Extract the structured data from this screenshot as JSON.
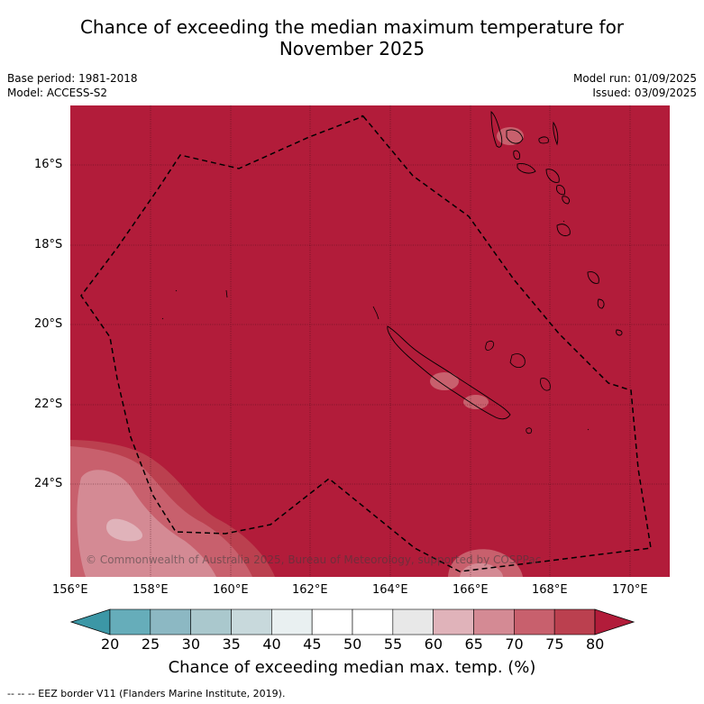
{
  "header": {
    "title_line1": "Chance of exceeding the median maximum temperature for",
    "title_line2": "November 2025",
    "base_period": "Base period: 1981-2018",
    "model": "Model: ACCESS-S2",
    "model_run": "Model run: 01/09/2025",
    "issued": "Issued: 03/09/2025"
  },
  "map": {
    "lat_labels": [
      "16°S",
      "18°S",
      "20°S",
      "22°S",
      "24°S"
    ],
    "lon_labels": [
      "156°E",
      "158°E",
      "160°E",
      "162°E",
      "164°E",
      "166°E",
      "168°E",
      "170°E"
    ],
    "watermark": "© Commonwealth of Australia 2025, Bureau of Meteorology, supported by COSPPac",
    "dominant_color": "#b21c3a",
    "eez_line_style": "dashed black"
  },
  "colorbar": {
    "ticks": [
      "20",
      "25",
      "30",
      "35",
      "40",
      "45",
      "50",
      "55",
      "60",
      "65",
      "70",
      "75",
      "80"
    ],
    "colors": [
      "#3c97a6",
      "#66adba",
      "#8cb8c3",
      "#aac8cd",
      "#c8d9dc",
      "#e9f0f1",
      "#ffffff",
      "#ffffff",
      "#e8e8e8",
      "#e0b3ba",
      "#d48a94",
      "#c8606d",
      "#bb404f",
      "#b21c3a"
    ],
    "label": "Chance of exceeding median max. temp. (%)"
  },
  "footnote": "--  --  -- EEZ border V11 (Flanders Marine Institute, 2019)."
}
